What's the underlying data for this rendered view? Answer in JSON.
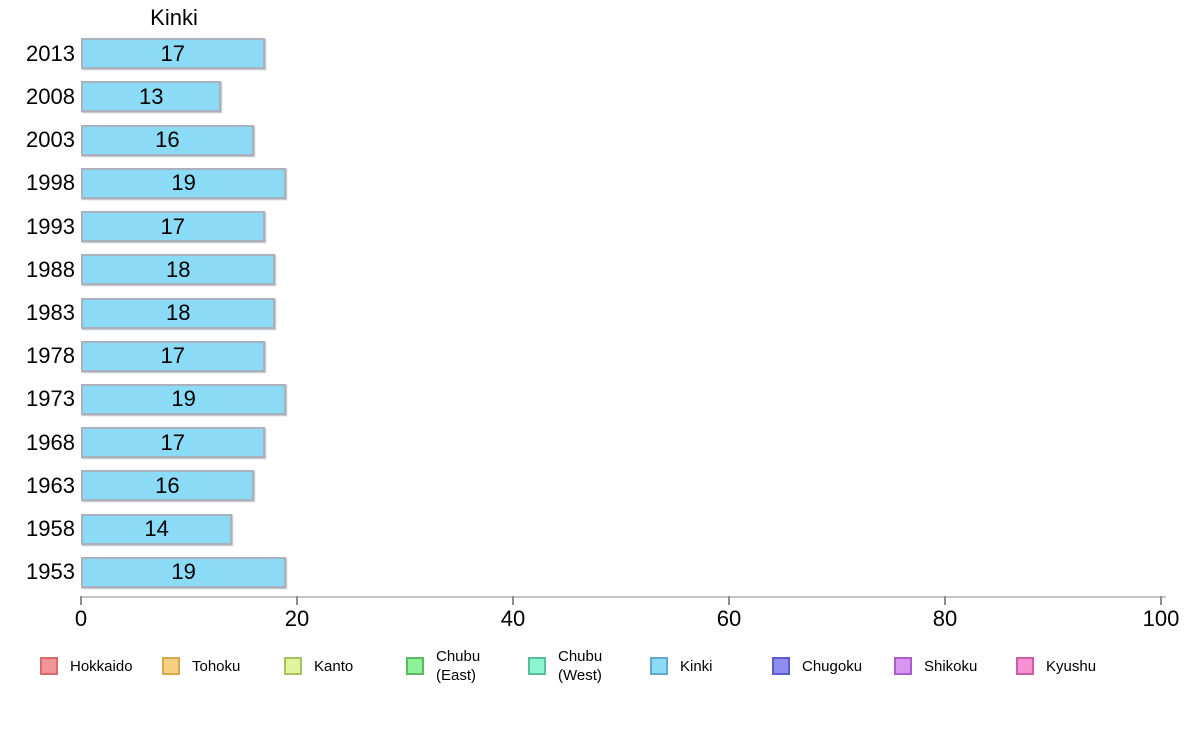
{
  "title": "Kinki",
  "chart_data": {
    "type": "bar",
    "orientation": "horizontal",
    "title": "Kinki",
    "categories": [
      "2013",
      "2008",
      "2003",
      "1998",
      "1993",
      "1988",
      "1983",
      "1978",
      "1973",
      "1968",
      "1963",
      "1958",
      "1953"
    ],
    "values": [
      17,
      13,
      16,
      19,
      17,
      18,
      18,
      17,
      19,
      17,
      16,
      14,
      19
    ],
    "xlabel": "",
    "ylabel": "",
    "xlim": [
      0,
      100
    ],
    "x_ticks": [
      0,
      20,
      40,
      60,
      80,
      100
    ],
    "grid": "off",
    "bar_fill_color": "#8bdbf7",
    "bar_border_color": "#a9b2bc",
    "value_labels": "inside-center",
    "legend_position": "bottom"
  },
  "legend": {
    "items": [
      {
        "label": "Hokkaido",
        "label_lines": [
          "Hokkaido"
        ],
        "fill": "#f5939b",
        "border": "#d96a6a"
      },
      {
        "label": "Tohoku",
        "label_lines": [
          "Tohoku"
        ],
        "fill": "#f8d084",
        "border": "#d8a84e"
      },
      {
        "label": "Kanto",
        "label_lines": [
          "Kanto"
        ],
        "fill": "#def59b",
        "border": "#aabf5e"
      },
      {
        "label": "Chubu (East)",
        "label_lines": [
          "Chubu",
          "(East)"
        ],
        "fill": "#8ef297",
        "border": "#5bb763"
      },
      {
        "label": "Chubu (West)",
        "label_lines": [
          "Chubu",
          "(West)"
        ],
        "fill": "#8df5d2",
        "border": "#56bda0"
      },
      {
        "label": "Kinki",
        "label_lines": [
          "Kinki"
        ],
        "fill": "#8bdbf7",
        "border": "#63a9cf"
      },
      {
        "label": "Chugoku",
        "label_lines": [
          "Chugoku"
        ],
        "fill": "#8d8df2",
        "border": "#5c5ccc"
      },
      {
        "label": "Shikoku",
        "label_lines": [
          "Shikoku"
        ],
        "fill": "#d995f2",
        "border": "#aa5ecc"
      },
      {
        "label": "Kyushu",
        "label_lines": [
          "Kyushu"
        ],
        "fill": "#f791d3",
        "border": "#cc5ea6"
      }
    ]
  }
}
